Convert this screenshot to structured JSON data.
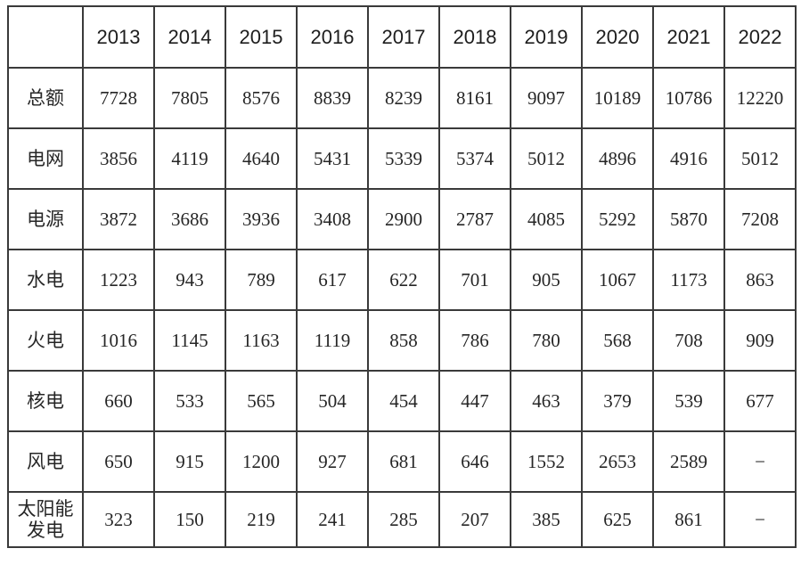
{
  "table": {
    "corner_label": "",
    "years": [
      "2013",
      "2014",
      "2015",
      "2016",
      "2017",
      "2018",
      "2019",
      "2020",
      "2021",
      "2022"
    ],
    "rows": [
      {
        "label": "总额",
        "values": [
          "7728",
          "7805",
          "8576",
          "8839",
          "8239",
          "8161",
          "9097",
          "10189",
          "10786",
          "12220"
        ]
      },
      {
        "label": "电网",
        "values": [
          "3856",
          "4119",
          "4640",
          "5431",
          "5339",
          "5374",
          "5012",
          "4896",
          "4916",
          "5012"
        ]
      },
      {
        "label": "电源",
        "values": [
          "3872",
          "3686",
          "3936",
          "3408",
          "2900",
          "2787",
          "4085",
          "5292",
          "5870",
          "7208"
        ]
      },
      {
        "label": "水电",
        "values": [
          "1223",
          "943",
          "789",
          "617",
          "622",
          "701",
          "905",
          "1067",
          "1173",
          "863"
        ]
      },
      {
        "label": "火电",
        "values": [
          "1016",
          "1145",
          "1163",
          "1119",
          "858",
          "786",
          "780",
          "568",
          "708",
          "909"
        ]
      },
      {
        "label": "核电",
        "values": [
          "660",
          "533",
          "565",
          "504",
          "454",
          "447",
          "463",
          "379",
          "539",
          "677"
        ]
      },
      {
        "label": "风电",
        "values": [
          "650",
          "915",
          "1200",
          "927",
          "681",
          "646",
          "1552",
          "2653",
          "2589",
          "−"
        ]
      },
      {
        "label": "太阳能发电",
        "values": [
          "323",
          "150",
          "219",
          "241",
          "285",
          "207",
          "385",
          "625",
          "861",
          "−"
        ]
      }
    ]
  },
  "colors": {
    "border": "#3a3a3a",
    "text": "#262626",
    "background": "#ffffff"
  }
}
